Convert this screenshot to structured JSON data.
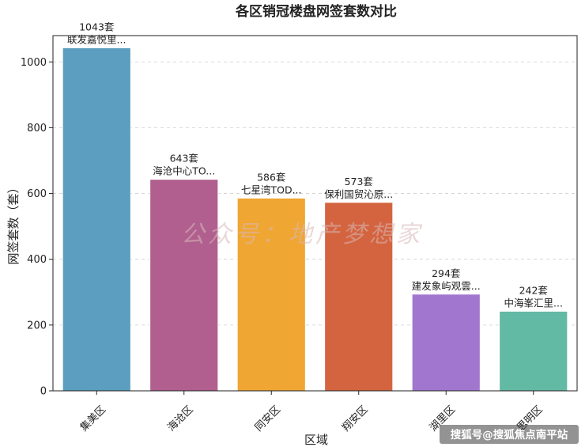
{
  "chart_data": {
    "type": "bar",
    "title": "各区销冠楼盘网签套数对比",
    "xlabel": "区域",
    "ylabel": "网签套数（套）",
    "ylim": [
      0,
      1080
    ],
    "yticks": [
      0,
      200,
      400,
      600,
      800,
      1000
    ],
    "grid": "horizontal dashed",
    "categories": [
      "集美区",
      "海沧区",
      "同安区",
      "翔安区",
      "湖里区",
      "思明区"
    ],
    "values": [
      1043,
      643,
      586,
      573,
      294,
      242
    ],
    "value_labels": [
      "1043套",
      "643套",
      "586套",
      "573套",
      "294套",
      "242套"
    ],
    "project_labels": [
      "联发嘉悦里...",
      "海沧中心TO...",
      "七星湾TOD...",
      "保利国贸沁原...",
      "建发象屿观雲...",
      "中海峯汇里..."
    ],
    "colors": [
      "#5b9ec0",
      "#b05f8e",
      "#f0a632",
      "#d4643f",
      "#a176ce",
      "#62b9a4"
    ]
  },
  "watermark": "公众号：地产梦想家",
  "source_text": "搜狐号@搜狐焦点南平站"
}
